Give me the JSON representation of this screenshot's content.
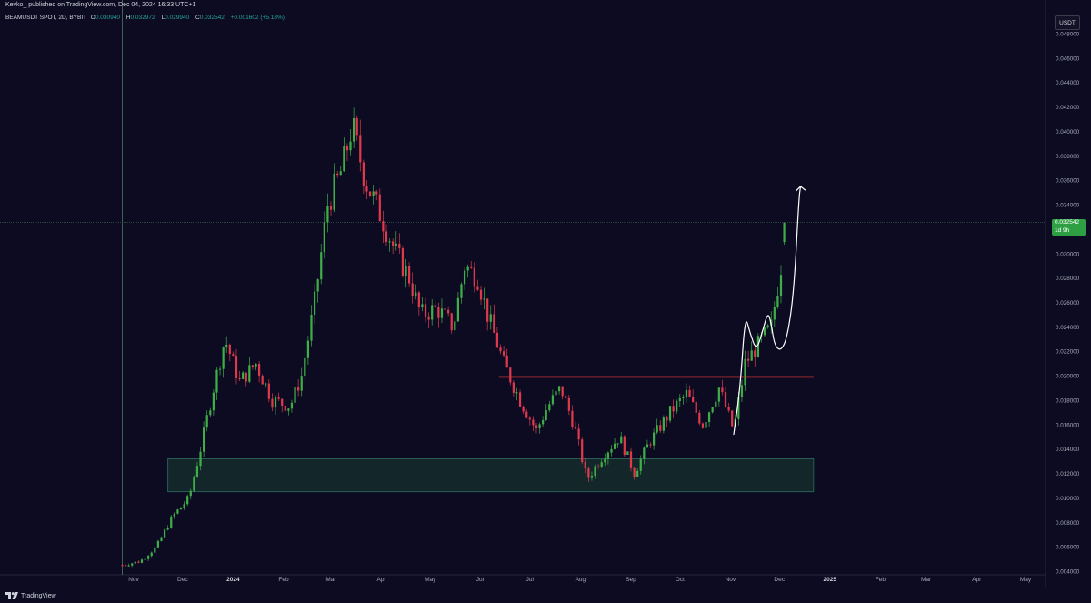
{
  "header": {
    "published_line": "Kevko_ published on TradingView.com, Dec 04, 2024 16:33 UTC+1",
    "symbol_line": "BEAMUSDT SPOT, 2D, BYBIT",
    "ohlc": {
      "open_label": "O",
      "open": "0.030940",
      "high_label": "H",
      "high": "0.032972",
      "low_label": "L",
      "low": "0.029940",
      "close_label": "C",
      "close": "0.032542",
      "change": "+0.001602 (+5.18%)"
    }
  },
  "currency_button": {
    "label": "USDT"
  },
  "last_price": {
    "value": "0.032542",
    "countdown": "1d 9h",
    "color": "#2ea043"
  },
  "brand": {
    "name": "TradingView"
  },
  "colors": {
    "background": "#0c0b22",
    "up": "#3fae48",
    "down": "#e0384c",
    "resistance": "#e53935",
    "support_zone_fill": "#16302c",
    "support_zone_border": "#2f6e5e",
    "drawing": "#ffffff",
    "axis_text": "#a6a8b5"
  },
  "chart_data": {
    "type": "candlestick",
    "y_axis": {
      "side": "right",
      "ticks": [
        "0.048000",
        "0.046000",
        "0.044000",
        "0.042000",
        "0.040000",
        "0.038000",
        "0.036000",
        "0.034000",
        "0.032000",
        "0.030000",
        "0.028000",
        "0.026000",
        "0.024000",
        "0.022000",
        "0.020000",
        "0.018000",
        "0.016000",
        "0.014000",
        "0.012000",
        "0.010000",
        "0.008000",
        "0.006000",
        "0.004000"
      ],
      "range": [
        0.004,
        0.049
      ]
    },
    "x_axis": {
      "ticks": [
        "Nov",
        "Dec",
        "2024",
        "Feb",
        "Mar",
        "Apr",
        "May",
        "Jun",
        "Jul",
        "Aug",
        "Sep",
        "Oct",
        "Nov",
        "Dec",
        "2025",
        "Feb",
        "Mar",
        "Apr",
        "May"
      ]
    },
    "waypoints": [
      [
        "2023-10-25",
        0.0045
      ],
      [
        "2023-11-05",
        0.0048
      ],
      [
        "2023-11-15",
        0.006
      ],
      [
        "2023-11-25",
        0.0085
      ],
      [
        "2023-12-05",
        0.01
      ],
      [
        "2023-12-12",
        0.014
      ],
      [
        "2023-12-20",
        0.019
      ],
      [
        "2023-12-27",
        0.023
      ],
      [
        "2024-01-05",
        0.0195
      ],
      [
        "2024-01-15",
        0.021
      ],
      [
        "2024-01-25",
        0.018
      ],
      [
        "2024-02-05",
        0.0175
      ],
      [
        "2024-02-12",
        0.02
      ],
      [
        "2024-02-20",
        0.026
      ],
      [
        "2024-02-28",
        0.034
      ],
      [
        "2024-03-08",
        0.037
      ],
      [
        "2024-03-14",
        0.0405
      ],
      [
        "2024-03-22",
        0.036
      ],
      [
        "2024-04-01",
        0.033
      ],
      [
        "2024-04-10",
        0.03
      ],
      [
        "2024-04-18",
        0.028
      ],
      [
        "2024-04-25",
        0.025
      ],
      [
        "2024-05-05",
        0.0255
      ],
      [
        "2024-05-15",
        0.024
      ],
      [
        "2024-05-22",
        0.029
      ],
      [
        "2024-05-30",
        0.028
      ],
      [
        "2024-06-05",
        0.025
      ],
      [
        "2024-06-15",
        0.021
      ],
      [
        "2024-06-25",
        0.018
      ],
      [
        "2024-07-05",
        0.0155
      ],
      [
        "2024-07-12",
        0.0175
      ],
      [
        "2024-07-20",
        0.019
      ],
      [
        "2024-07-28",
        0.016
      ],
      [
        "2024-08-05",
        0.0115
      ],
      [
        "2024-08-15",
        0.0135
      ],
      [
        "2024-08-25",
        0.015
      ],
      [
        "2024-09-03",
        0.012
      ],
      [
        "2024-09-12",
        0.0145
      ],
      [
        "2024-09-25",
        0.017
      ],
      [
        "2024-10-05",
        0.0185
      ],
      [
        "2024-10-15",
        0.016
      ],
      [
        "2024-10-25",
        0.019
      ],
      [
        "2024-11-03",
        0.0155
      ],
      [
        "2024-11-10",
        0.021
      ],
      [
        "2024-11-18",
        0.0225
      ],
      [
        "2024-11-26",
        0.024
      ],
      [
        "2024-12-02",
        0.029
      ],
      [
        "2024-12-04",
        0.032542
      ]
    ],
    "last_price": 0.032542,
    "annotations": {
      "resistance_line": {
        "price": 0.0199,
        "from": "2024-06-12",
        "to": "2024-12-22"
      },
      "support_zone": {
        "low": 0.0105,
        "high": 0.0132,
        "from": "2023-11-22",
        "to": "2024-12-22"
      },
      "projection_path": [
        [
          "2024-11-03",
          0.0152
        ],
        [
          "2024-11-07",
          0.019
        ],
        [
          "2024-11-10",
          0.025
        ],
        [
          "2024-11-13",
          0.0235
        ],
        [
          "2024-11-17",
          0.022
        ],
        [
          "2024-11-21",
          0.0238
        ],
        [
          "2024-11-24",
          0.0252
        ],
        [
          "2024-11-26",
          0.0243
        ],
        [
          "2024-11-28",
          0.0225
        ],
        [
          "2024-12-02",
          0.022
        ],
        [
          "2024-12-06",
          0.0232
        ],
        [
          "2024-12-10",
          0.027
        ],
        [
          "2024-12-13",
          0.0345
        ],
        [
          "2024-12-14",
          0.0355
        ]
      ],
      "crosshair_date": "2023-10-25",
      "crosshair_price": 0.0325
    }
  }
}
